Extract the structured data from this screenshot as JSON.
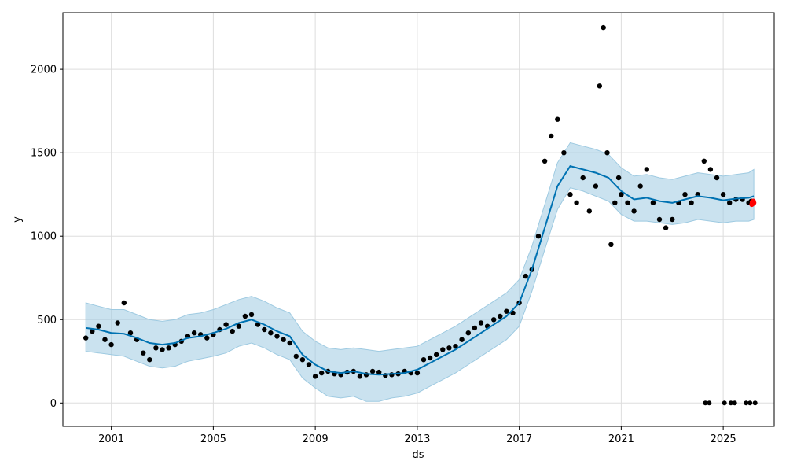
{
  "chart_data": {
    "type": "line",
    "xlabel": "ds",
    "ylabel": "y",
    "xlim": [
      1999.1,
      2027.0
    ],
    "ylim": [
      -140,
      2340
    ],
    "grid": true,
    "x_ticks": [
      {
        "value": 2001,
        "label": "2001"
      },
      {
        "value": 2005,
        "label": "2005"
      },
      {
        "value": 2009,
        "label": "2009"
      },
      {
        "value": 2013,
        "label": "2013"
      },
      {
        "value": 2017,
        "label": "2017"
      },
      {
        "value": 2021,
        "label": "2021"
      },
      {
        "value": 2025,
        "label": "2025"
      }
    ],
    "y_ticks": [
      {
        "value": 0,
        "label": "0"
      },
      {
        "value": 500,
        "label": "500"
      },
      {
        "value": 1000,
        "label": "1000"
      },
      {
        "value": 1500,
        "label": "1500"
      },
      {
        "value": 2000,
        "label": "2000"
      }
    ],
    "colors": {
      "forecast": "#0072B2",
      "band": "#9ECAE1",
      "observed": "#000000",
      "highlight": "#FF0000",
      "grid": "#DDDDDD"
    },
    "forecast": {
      "x": [
        2000.0,
        2000.5,
        2001.0,
        2001.5,
        2002.0,
        2002.5,
        2003.0,
        2003.5,
        2004.0,
        2004.5,
        2005.0,
        2005.5,
        2006.0,
        2006.5,
        2007.0,
        2007.5,
        2008.0,
        2008.5,
        2009.0,
        2009.5,
        2010.0,
        2010.5,
        2011.0,
        2011.5,
        2012.0,
        2012.5,
        2013.0,
        2013.5,
        2014.0,
        2014.5,
        2015.0,
        2015.5,
        2016.0,
        2016.5,
        2017.0,
        2017.5,
        2018.0,
        2018.5,
        2019.0,
        2019.5,
        2020.0,
        2020.5,
        2021.0,
        2021.5,
        2022.0,
        2022.5,
        2023.0,
        2023.5,
        2024.0,
        2024.5,
        2025.0,
        2025.5,
        2026.0,
        2026.2
      ],
      "yhat": [
        450,
        440,
        420,
        415,
        390,
        360,
        350,
        360,
        390,
        400,
        420,
        445,
        480,
        500,
        470,
        430,
        400,
        290,
        230,
        190,
        180,
        190,
        175,
        170,
        175,
        180,
        200,
        240,
        280,
        320,
        370,
        420,
        470,
        520,
        600,
        800,
        1050,
        1300,
        1420,
        1400,
        1380,
        1350,
        1270,
        1220,
        1230,
        1210,
        1200,
        1220,
        1240,
        1230,
        1215,
        1225,
        1230,
        1240
      ],
      "yhat_lower": [
        310,
        300,
        290,
        280,
        250,
        220,
        210,
        220,
        250,
        265,
        280,
        300,
        340,
        360,
        330,
        290,
        260,
        150,
        90,
        40,
        30,
        40,
        10,
        10,
        30,
        40,
        60,
        100,
        140,
        180,
        230,
        280,
        330,
        380,
        460,
        670,
        920,
        1160,
        1290,
        1270,
        1240,
        1210,
        1130,
        1090,
        1090,
        1080,
        1070,
        1080,
        1100,
        1090,
        1080,
        1090,
        1090,
        1100
      ],
      "yhat_upper": [
        600,
        580,
        560,
        560,
        530,
        500,
        490,
        500,
        530,
        540,
        560,
        590,
        620,
        640,
        610,
        570,
        540,
        430,
        370,
        330,
        320,
        330,
        320,
        310,
        320,
        330,
        340,
        380,
        420,
        460,
        510,
        560,
        610,
        660,
        740,
        940,
        1190,
        1440,
        1560,
        1540,
        1520,
        1490,
        1410,
        1360,
        1370,
        1350,
        1340,
        1360,
        1380,
        1370,
        1360,
        1370,
        1380,
        1400
      ]
    },
    "observed": {
      "x": [
        2000.0,
        2000.25,
        2000.5,
        2000.75,
        2001.0,
        2001.25,
        2001.5,
        2001.75,
        2002.0,
        2002.25,
        2002.5,
        2002.75,
        2003.0,
        2003.25,
        2003.5,
        2003.75,
        2004.0,
        2004.25,
        2004.5,
        2004.75,
        2005.0,
        2005.25,
        2005.5,
        2005.75,
        2006.0,
        2006.25,
        2006.5,
        2006.75,
        2007.0,
        2007.25,
        2007.5,
        2007.75,
        2008.0,
        2008.25,
        2008.5,
        2008.75,
        2009.0,
        2009.25,
        2009.5,
        2009.75,
        2010.0,
        2010.25,
        2010.5,
        2010.75,
        2011.0,
        2011.25,
        2011.5,
        2011.75,
        2012.0,
        2012.25,
        2012.5,
        2012.75,
        2013.0,
        2013.25,
        2013.5,
        2013.75,
        2014.0,
        2014.25,
        2014.5,
        2014.75,
        2015.0,
        2015.25,
        2015.5,
        2015.75,
        2016.0,
        2016.25,
        2016.5,
        2016.75,
        2017.0,
        2017.25,
        2017.5,
        2017.75,
        2018.0,
        2018.25,
        2018.5,
        2018.75,
        2019.0,
        2019.25,
        2019.5,
        2019.75,
        2020.0,
        2020.15,
        2020.3,
        2020.45,
        2020.6,
        2020.75,
        2020.9,
        2021.0,
        2021.25,
        2021.5,
        2021.75,
        2022.0,
        2022.25,
        2022.5,
        2022.75,
        2023.0,
        2023.25,
        2023.5,
        2023.75,
        2024.0,
        2024.25,
        2024.5,
        2024.75,
        2025.0,
        2025.25,
        2025.5,
        2025.75,
        2026.0,
        2026.1
      ],
      "y": [
        390,
        430,
        460,
        380,
        350,
        480,
        600,
        420,
        380,
        300,
        260,
        330,
        320,
        330,
        350,
        370,
        400,
        420,
        410,
        390,
        410,
        440,
        470,
        430,
        460,
        520,
        530,
        470,
        440,
        420,
        400,
        380,
        360,
        280,
        260,
        230,
        160,
        180,
        190,
        175,
        170,
        185,
        190,
        160,
        170,
        190,
        185,
        165,
        170,
        175,
        190,
        180,
        180,
        260,
        270,
        290,
        320,
        330,
        340,
        380,
        420,
        450,
        480,
        460,
        500,
        520,
        550,
        540,
        600,
        760,
        800,
        1000,
        1450,
        1600,
        1700,
        1500,
        1250,
        1200,
        1350,
        1150,
        1300,
        1900,
        2250,
        1500,
        950,
        1200,
        1350,
        1250,
        1200,
        1150,
        1300,
        1400,
        1200,
        1100,
        1050,
        1100,
        1200,
        1250,
        1200,
        1250,
        1450,
        1400,
        1350,
        1250,
        1200,
        1220,
        1220,
        1200,
        1210
      ]
    },
    "outliers": {
      "x": [
        2024.3,
        2024.45,
        2025.05,
        2025.3,
        2025.45,
        2025.9,
        2026.05,
        2026.25
      ],
      "y": [
        0,
        0,
        0,
        0,
        0,
        0,
        0,
        0
      ]
    },
    "highlight": {
      "x": [
        2026.12,
        2026.14,
        2026.16,
        2026.18,
        2026.2
      ],
      "y": [
        1190,
        1205,
        1195,
        1210,
        1200
      ]
    }
  }
}
